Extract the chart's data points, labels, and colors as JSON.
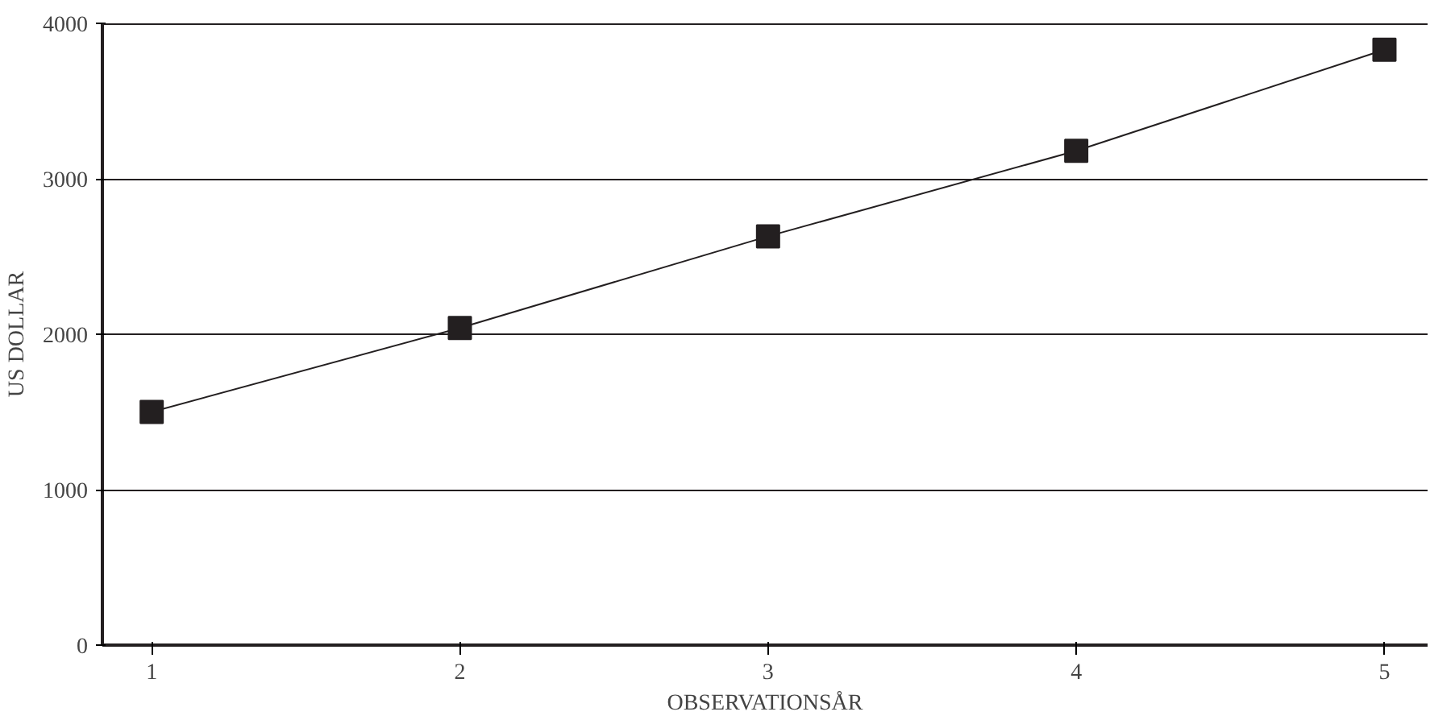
{
  "chart_data": {
    "type": "line",
    "xlabel": "OBSERVATIONSÅR",
    "ylabel": "US DOLLAR",
    "x": [
      1,
      2,
      3,
      4,
      5
    ],
    "series": [
      {
        "color": "#231f20",
        "values": [
          1500,
          2040,
          2630,
          3180,
          3830
        ]
      }
    ],
    "xlim": [
      0.84,
      5.14
    ],
    "xticks": [
      1,
      2,
      3,
      4,
      5
    ],
    "ylim": [
      0,
      4000
    ],
    "yticks": [
      0,
      1000,
      2000,
      3000,
      4000
    ],
    "grid": "y",
    "marker": "square",
    "line_style": "solid"
  }
}
